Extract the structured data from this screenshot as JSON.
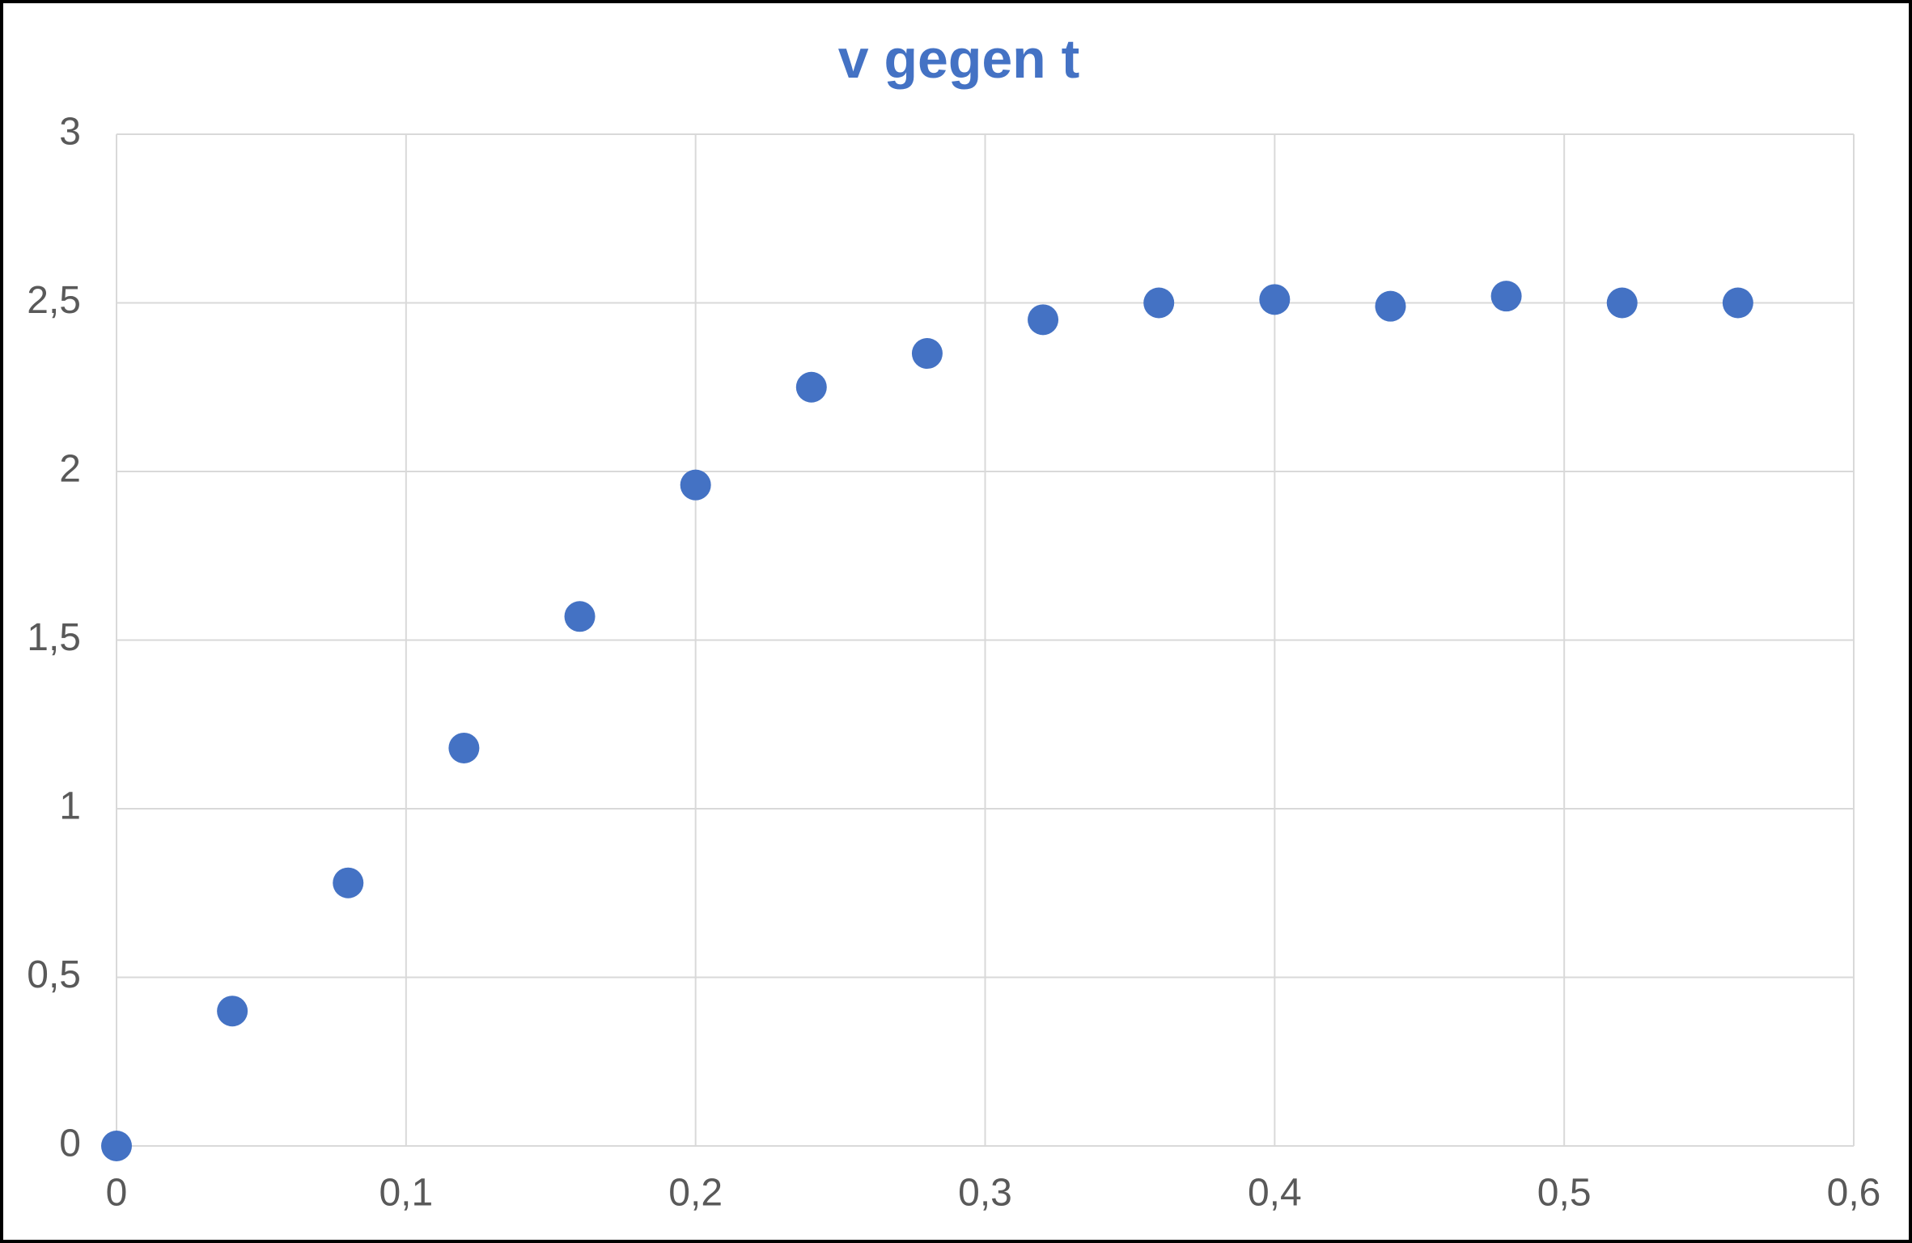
{
  "chart_data": {
    "type": "scatter",
    "title": "v gegen t",
    "x": [
      0,
      0.04,
      0.08,
      0.12,
      0.16,
      0.2,
      0.24,
      0.28,
      0.32,
      0.36,
      0.4,
      0.44,
      0.48,
      0.52,
      0.56
    ],
    "values": [
      0,
      0.4,
      0.78,
      1.18,
      1.57,
      1.96,
      2.25,
      2.35,
      2.45,
      2.5,
      2.51,
      2.49,
      2.52,
      2.5,
      2.5
    ],
    "color": "#4472c4",
    "xlim": [
      0,
      0.6
    ],
    "xticks": [
      0,
      {
        "value": 0.1,
        "label": "0,1"
      },
      {
        "value": 0.2,
        "label": "0,2"
      },
      {
        "value": 0.3,
        "label": "0,3"
      },
      {
        "value": 0.4,
        "label": "0,4"
      },
      {
        "value": 0.5,
        "label": "0,5"
      },
      {
        "value": 0.6,
        "label": "0,6"
      }
    ],
    "ylim": [
      0,
      3
    ],
    "yticks": [
      0,
      {
        "value": 0.5,
        "label": "0,5"
      },
      1,
      {
        "value": 1.5,
        "label": "1,5"
      },
      2,
      {
        "value": 2.5,
        "label": "2,5"
      },
      3
    ],
    "grid": true
  }
}
